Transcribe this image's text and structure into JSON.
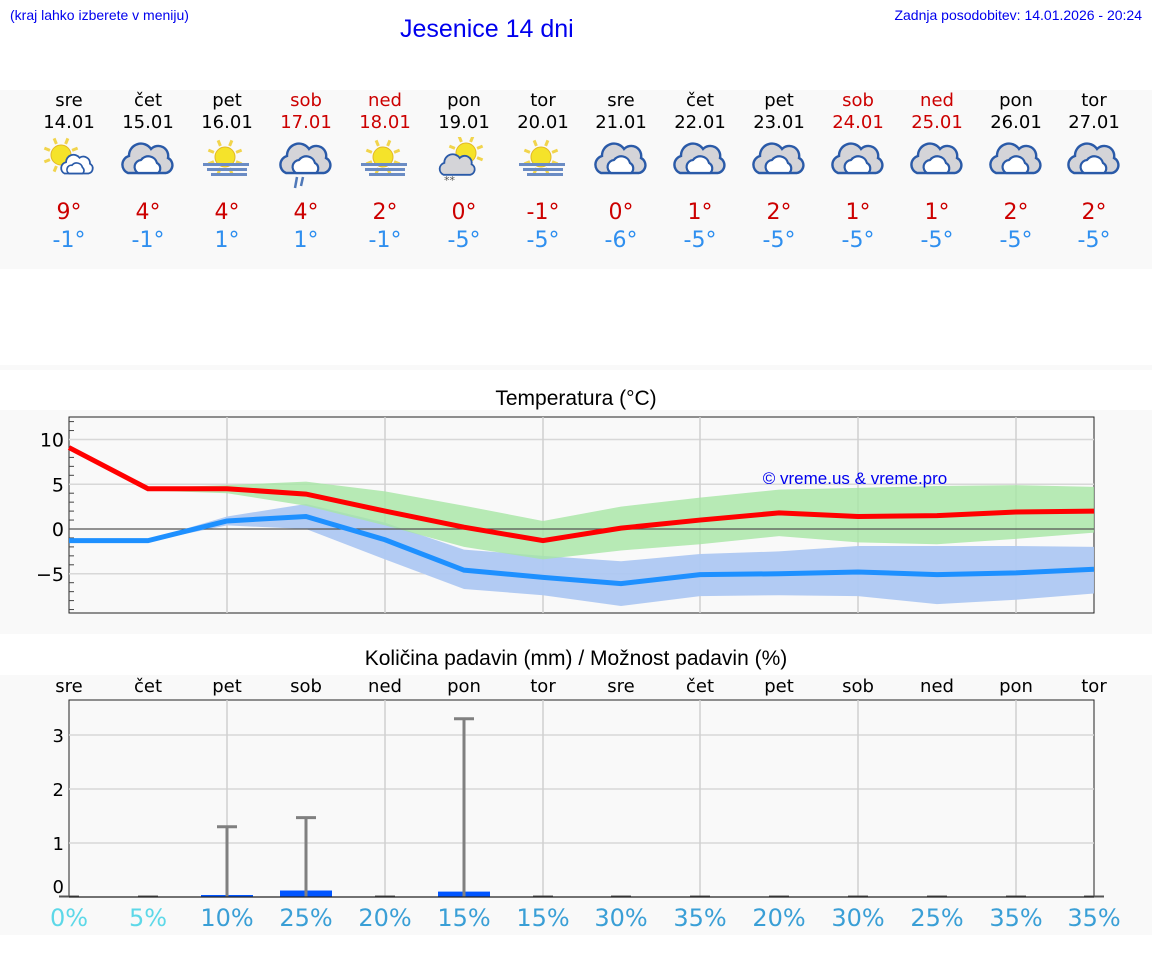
{
  "header": {
    "menu_hint": "(kraj lahko izberete v meniju)",
    "title": "Jesenice 14 dni",
    "last_update": "Zadnja posodobitev: 14.01.2026 - 20:24"
  },
  "colors": {
    "link": "#0000ee",
    "max_temp": "#cc0000",
    "min_temp": "#2f8fef",
    "max_line": "#ff0000",
    "min_line": "#1e90ff",
    "max_band": "#aee8ad",
    "min_band": "#aec8f2",
    "precip_bar": "#0055ff",
    "precip_err": "#808080",
    "panel_bg": "#f9f9f9"
  },
  "days": [
    {
      "name": "sre",
      "date": "14.01",
      "weekend": false,
      "icon": "partly-cloudy-sun-icon",
      "tmax": "9°",
      "tmin": "-1°"
    },
    {
      "name": "čet",
      "date": "15.01",
      "weekend": false,
      "icon": "cloudy-icon",
      "tmax": "4°",
      "tmin": "-1°"
    },
    {
      "name": "pet",
      "date": "16.01",
      "weekend": false,
      "icon": "sun-fog-icon",
      "tmax": "4°",
      "tmin": "1°"
    },
    {
      "name": "sob",
      "date": "17.01",
      "weekend": true,
      "icon": "cloudy-rain-icon",
      "tmax": "4°",
      "tmin": "1°"
    },
    {
      "name": "ned",
      "date": "18.01",
      "weekend": true,
      "icon": "sun-fog-icon",
      "tmax": "2°",
      "tmin": "-1°"
    },
    {
      "name": "pon",
      "date": "19.01",
      "weekend": false,
      "icon": "sun-cloud-snow-icon",
      "tmax": "0°",
      "tmin": "-5°"
    },
    {
      "name": "tor",
      "date": "20.01",
      "weekend": false,
      "icon": "sun-fog-icon",
      "tmax": "-1°",
      "tmin": "-5°"
    },
    {
      "name": "sre",
      "date": "21.01",
      "weekend": false,
      "icon": "cloudy-icon",
      "tmax": "0°",
      "tmin": "-6°"
    },
    {
      "name": "čet",
      "date": "22.01",
      "weekend": false,
      "icon": "cloudy-icon",
      "tmax": "1°",
      "tmin": "-5°"
    },
    {
      "name": "pet",
      "date": "23.01",
      "weekend": false,
      "icon": "cloudy-icon",
      "tmax": "2°",
      "tmin": "-5°"
    },
    {
      "name": "sob",
      "date": "24.01",
      "weekend": true,
      "icon": "cloudy-icon",
      "tmax": "1°",
      "tmin": "-5°"
    },
    {
      "name": "ned",
      "date": "25.01",
      "weekend": true,
      "icon": "cloudy-icon",
      "tmax": "1°",
      "tmin": "-5°"
    },
    {
      "name": "pon",
      "date": "26.01",
      "weekend": false,
      "icon": "cloudy-icon",
      "tmax": "2°",
      "tmin": "-5°"
    },
    {
      "name": "tor",
      "date": "27.01",
      "weekend": false,
      "icon": "cloudy-icon",
      "tmax": "2°",
      "tmin": "-5°"
    }
  ],
  "temperature_chart": {
    "title": "Temperatura (°C)",
    "watermark": "© vreme.us & vreme.pro",
    "yticks": [
      "10",
      "5",
      "0",
      "−5"
    ]
  },
  "precip_chart": {
    "title": "Količina padavin (mm) / Možnost padavin (%)",
    "yticks": [
      "3",
      "2",
      "1",
      "0"
    ],
    "day_labels": [
      "sre",
      "čet",
      "pet",
      "sob",
      "ned",
      "pon",
      "tor",
      "sre",
      "čet",
      "pet",
      "sob",
      "ned",
      "pon",
      "tor"
    ],
    "chance_labels": [
      "0%",
      "5%",
      "10%",
      "25%",
      "20%",
      "15%",
      "15%",
      "30%",
      "35%",
      "20%",
      "30%",
      "25%",
      "35%",
      "35%"
    ],
    "chance_colors": [
      "#5dd8e8",
      "#5dd8e8",
      "#3a9fd6",
      "#3a9fd6",
      "#3a9fd6",
      "#3a9fd6",
      "#3a9fd6",
      "#3a9fd6",
      "#3a9fd6",
      "#3a9fd6",
      "#3a9fd6",
      "#3a9fd6",
      "#3a9fd6",
      "#3a9fd6"
    ]
  },
  "chart_data": [
    {
      "type": "line",
      "title": "Temperatura (°C)",
      "xlabel": "",
      "ylabel": "°C",
      "ylim": [
        -9.5,
        12.5
      ],
      "grid": true,
      "x": [
        "14.01",
        "15.01",
        "16.01",
        "17.01",
        "18.01",
        "19.01",
        "20.01",
        "21.01",
        "22.01",
        "23.01",
        "24.01",
        "25.01",
        "26.01",
        "27.01"
      ],
      "yticks": [
        10,
        5,
        0,
        -5
      ],
      "series": [
        {
          "name": "max",
          "color": "#ff0000",
          "values": [
            9.1,
            4.5,
            4.5,
            3.9,
            2.0,
            0.2,
            -1.3,
            0.1,
            1.0,
            1.8,
            1.4,
            1.5,
            1.9,
            2.0
          ]
        },
        {
          "name": "max_band_upper",
          "color": "#aee8ad",
          "values": [
            null,
            4.6,
            4.9,
            5.3,
            4.2,
            2.6,
            0.9,
            2.5,
            3.5,
            4.4,
            4.6,
            4.8,
            4.9,
            4.7
          ]
        },
        {
          "name": "max_band_lower",
          "color": "#aee8ad",
          "values": [
            null,
            4.3,
            4.0,
            2.6,
            0.4,
            -2.0,
            -3.4,
            -2.4,
            -1.7,
            -0.8,
            -1.5,
            -1.7,
            -1.1,
            -0.4
          ]
        },
        {
          "name": "min",
          "color": "#1e90ff",
          "values": [
            -1.3,
            -1.3,
            0.9,
            1.4,
            -1.2,
            -4.6,
            -5.4,
            -6.1,
            -5.1,
            -5.0,
            -4.8,
            -5.1,
            -4.9,
            -4.5
          ]
        },
        {
          "name": "min_band_upper",
          "color": "#aec8f2",
          "values": [
            null,
            -1.2,
            1.4,
            2.8,
            0.7,
            -2.3,
            -3.0,
            -3.6,
            -2.8,
            -2.5,
            -1.9,
            -1.9,
            -1.9,
            -2.0
          ]
        },
        {
          "name": "min_band_lower",
          "color": "#aec8f2",
          "values": [
            null,
            -1.4,
            0.4,
            0.0,
            -3.4,
            -6.7,
            -7.4,
            -8.6,
            -7.5,
            -7.4,
            -7.5,
            -8.4,
            -7.9,
            -7.2
          ]
        }
      ],
      "annotations": [
        "© vreme.us & vreme.pro"
      ]
    },
    {
      "type": "bar",
      "title": "Količina padavin (mm) / Možnost padavin (%)",
      "xlabel": "",
      "ylabel": "mm",
      "ylim": [
        0,
        3.6
      ],
      "grid": true,
      "categories": [
        "sre",
        "čet",
        "pet",
        "sob",
        "ned",
        "pon",
        "tor",
        "sre",
        "čet",
        "pet",
        "sob",
        "ned",
        "pon",
        "tor"
      ],
      "yticks": [
        0,
        1,
        2,
        3
      ],
      "series": [
        {
          "name": "precipitation_mm",
          "color": "#0055ff",
          "values": [
            0,
            0,
            0.02,
            0.12,
            0,
            0.1,
            0,
            0,
            0,
            0,
            0,
            0,
            0,
            0
          ]
        },
        {
          "name": "precipitation_max_mm",
          "color": "#808080",
          "values": [
            0,
            0,
            1.3,
            1.47,
            0,
            3.3,
            0,
            0,
            0,
            0,
            0,
            0,
            0,
            0
          ]
        },
        {
          "name": "chance_percent",
          "values": [
            0,
            5,
            10,
            25,
            20,
            15,
            15,
            30,
            35,
            20,
            30,
            25,
            35,
            35
          ]
        }
      ]
    }
  ]
}
